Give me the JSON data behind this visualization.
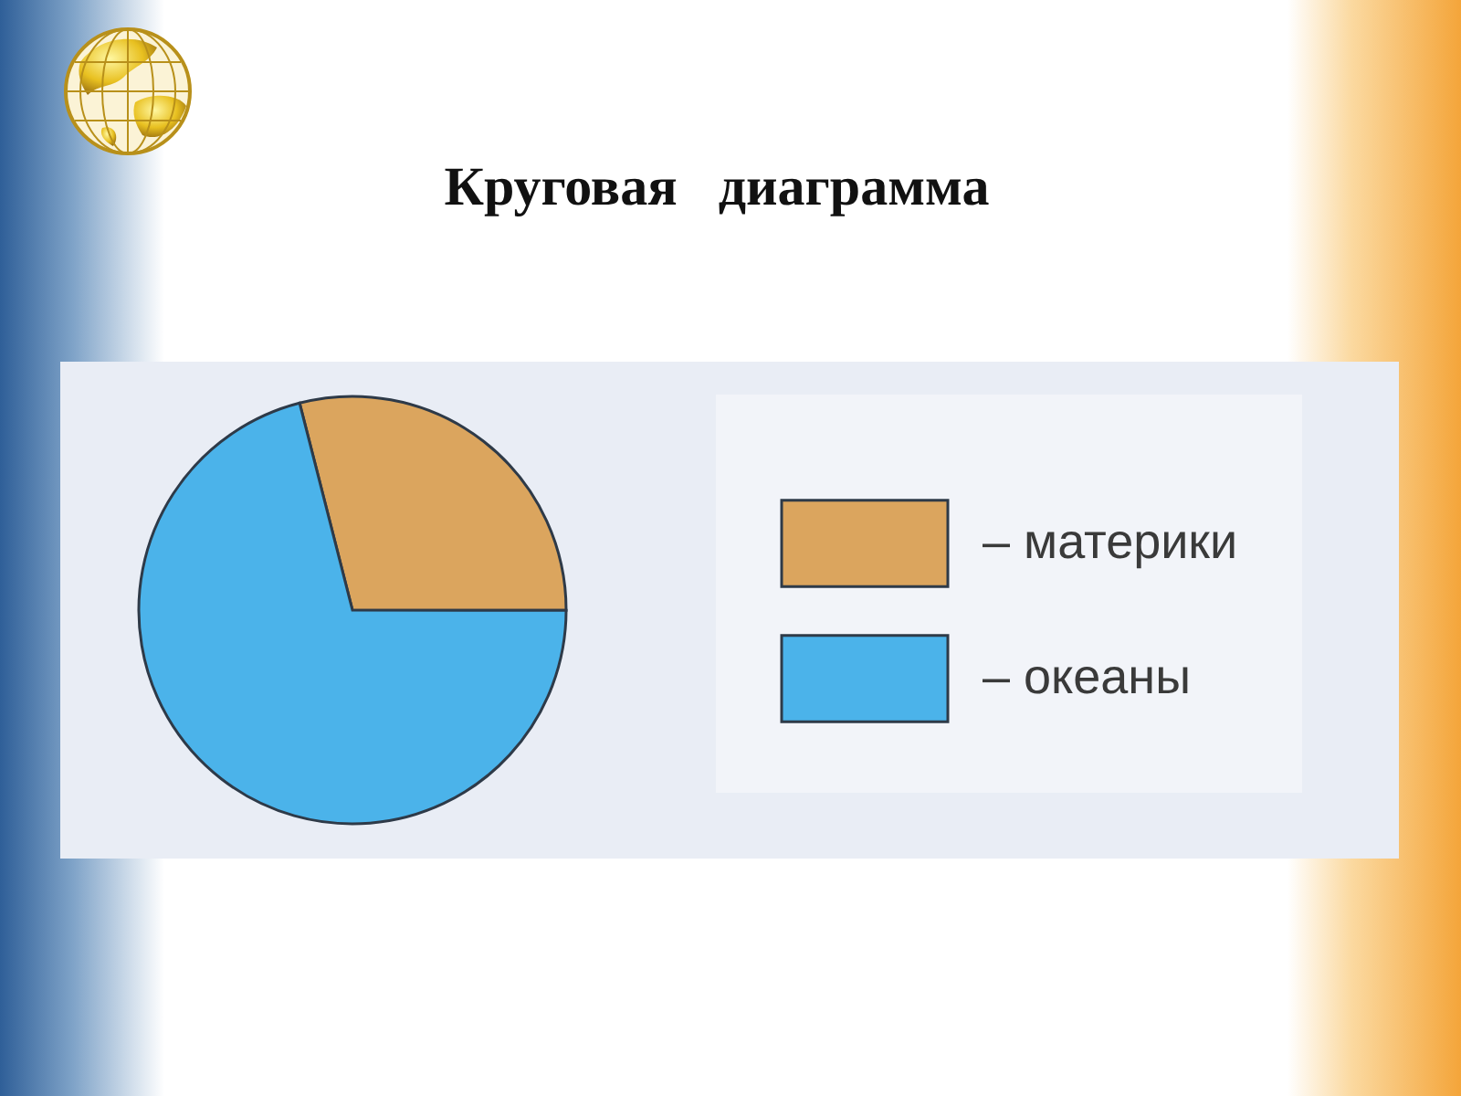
{
  "chart_data": {
    "type": "pie",
    "title": "Круговая   диаграмма",
    "categories": [
      "– материки",
      "– океаны"
    ],
    "values": [
      29,
      71
    ],
    "colors": [
      "#dba55e",
      "#4bb3ea"
    ],
    "legend": "right"
  }
}
